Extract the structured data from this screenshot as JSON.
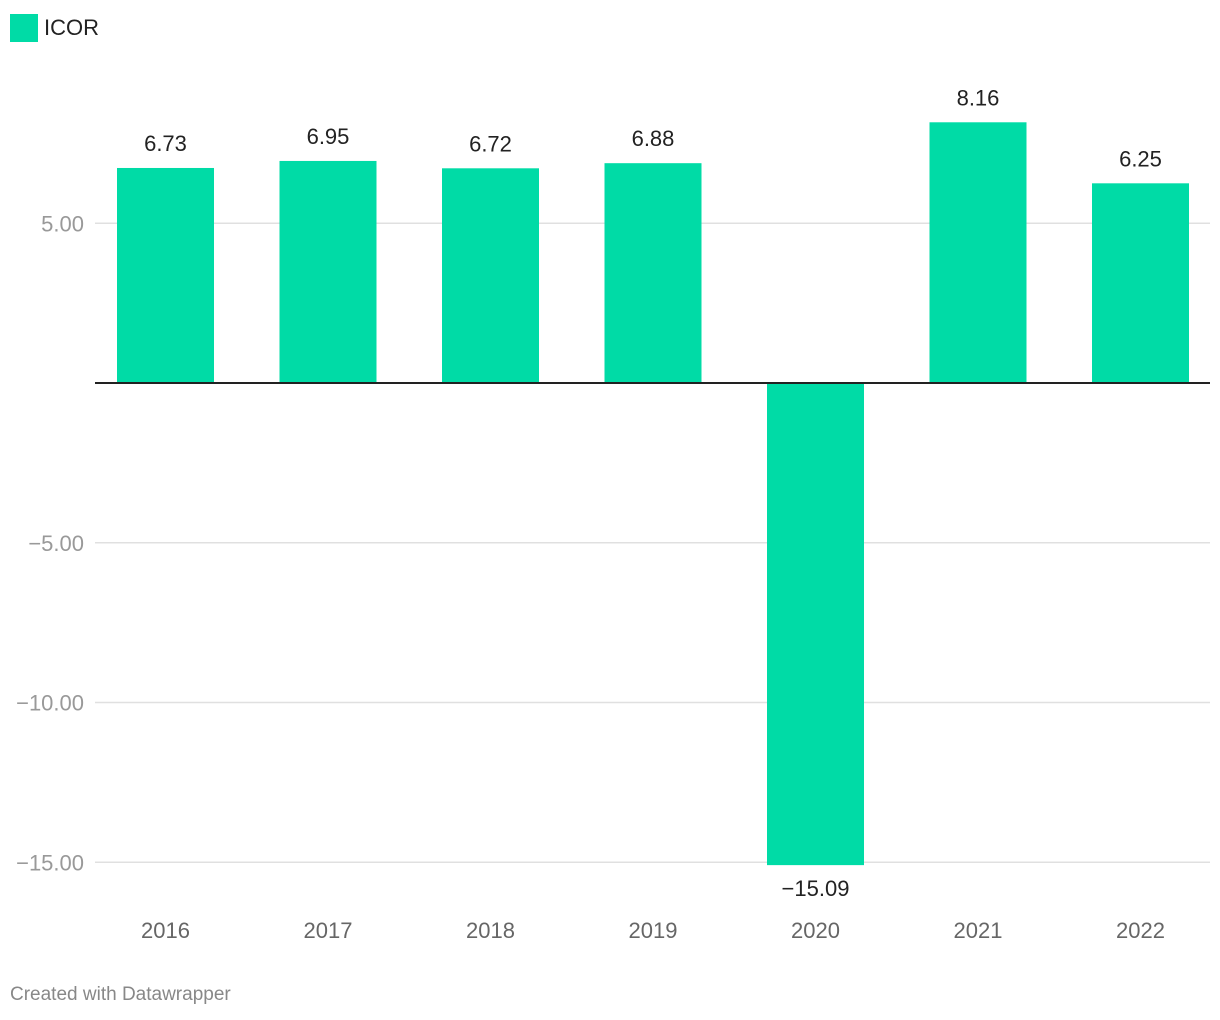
{
  "legend": {
    "label": "ICOR"
  },
  "footer": {
    "credit": "Created with Datawrapper"
  },
  "colors": {
    "bar": "#00dba6",
    "grid": "#e0e0e0",
    "baseline": "#222222",
    "tick_text": "#999999",
    "label_text": "#222222",
    "category_text": "#666666"
  },
  "chart_data": {
    "type": "bar",
    "categories": [
      "2016",
      "2017",
      "2018",
      "2019",
      "2020",
      "2021",
      "2022"
    ],
    "series": [
      {
        "name": "ICOR",
        "values": [
          6.73,
          6.95,
          6.72,
          6.88,
          -15.09,
          8.16,
          6.25
        ]
      }
    ],
    "value_labels": [
      "6.73",
      "6.95",
      "6.72",
      "6.88",
      "−15.09",
      "8.16",
      "6.25"
    ],
    "yticks": [
      5,
      -5,
      -10,
      -15
    ],
    "ytick_labels": [
      "5.00",
      "−5.00",
      "−10.00",
      "−15.00"
    ],
    "ylim": [
      -15.09,
      8.16
    ],
    "grid": true,
    "legend_position": "top-left"
  }
}
